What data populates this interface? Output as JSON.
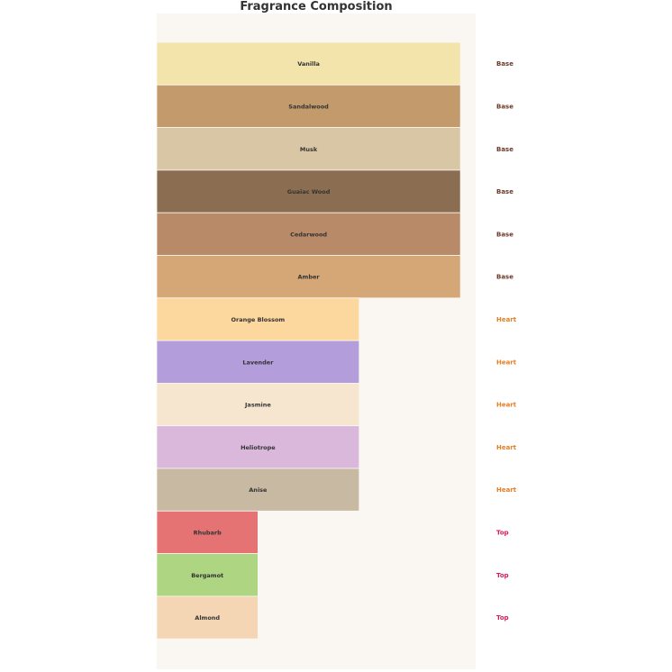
{
  "chart_data": {
    "type": "bar",
    "orientation": "horizontal",
    "title": "Fragrance Composition",
    "xlabel": "",
    "ylabel": "",
    "xlim": [
      0,
      3.15
    ],
    "grid": false,
    "categories": [
      "Vanilla",
      "Sandalwood",
      "Musk",
      "Guaiac Wood",
      "Cedarwood",
      "Amber",
      "Orange Blossom",
      "Lavender",
      "Jasmine",
      "Heliotrope",
      "Anise",
      "Rhubarb",
      "Bergamot",
      "Almond"
    ],
    "values": [
      3,
      3,
      3,
      3,
      3,
      3,
      2,
      2,
      2,
      2,
      2,
      1,
      1,
      1
    ],
    "layers": [
      "Base",
      "Base",
      "Base",
      "Base",
      "Base",
      "Base",
      "Heart",
      "Heart",
      "Heart",
      "Heart",
      "Heart",
      "Top",
      "Top",
      "Top"
    ],
    "colors": [
      "#f3e4ac",
      "#c29a6b",
      "#d9c6a5",
      "#8b6e52",
      "#b98a68",
      "#d5a676",
      "#fdd89e",
      "#b39ddb",
      "#f6e6cf",
      "#d9b8dc",
      "#c8b9a3",
      "#e57373",
      "#aed581",
      "#f5d6b4"
    ],
    "layer_colors": {
      "Base": "#6d3b2a",
      "Heart": "#e67e22",
      "Top": "#d81b60"
    },
    "plot_background": "#faf7f2"
  }
}
